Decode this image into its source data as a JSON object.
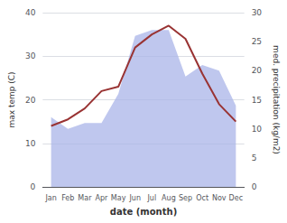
{
  "chart_data": {
    "type": "line",
    "categories": [
      "Jan",
      "Feb",
      "Mar",
      "Apr",
      "May",
      "Jun",
      "Jul",
      "Aug",
      "Sep",
      "Oct",
      "Nov",
      "Dec"
    ],
    "series": [
      {
        "type": "line",
        "color": "#993333",
        "values": [
          14,
          15.5,
          18,
          22,
          23,
          32,
          35,
          37,
          34,
          26,
          19,
          15
        ]
      },
      {
        "type": "area",
        "axis": "y2",
        "color": "#aab4e8",
        "values": [
          12,
          10,
          11,
          11,
          16,
          26,
          27,
          27,
          19,
          21,
          20,
          14
        ]
      }
    ],
    "xlabel": "date (month)",
    "ylabel": "max temp (C)",
    "y2label": "med. precipitation (kg/m2)",
    "ylim": [
      0,
      40
    ],
    "yticks": [
      0,
      10,
      20,
      30,
      40
    ],
    "y2lim": [
      0,
      30
    ],
    "y2ticks": [
      0,
      5,
      10,
      15,
      20,
      25,
      30
    ],
    "grid": true
  }
}
